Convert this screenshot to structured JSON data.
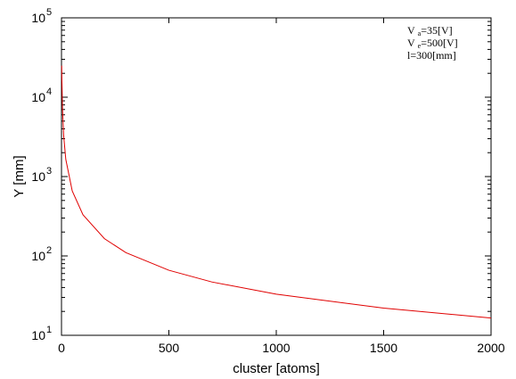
{
  "chart_data": {
    "type": "line",
    "title": "",
    "xlabel": "cluster [atoms]",
    "ylabel": "Y [mm]",
    "xlim": [
      0,
      2000
    ],
    "ylim": [
      10,
      100000
    ],
    "yscale": "log",
    "grid": false,
    "x_ticks": [
      "0",
      "500",
      "1000",
      "1500",
      "2000"
    ],
    "y_ticks": [
      {
        "base": "10",
        "exp": "1"
      },
      {
        "base": "10",
        "exp": "2"
      },
      {
        "base": "10",
        "exp": "3"
      },
      {
        "base": "10",
        "exp": "4"
      },
      {
        "base": "10",
        "exp": "5"
      }
    ],
    "annotations": [
      {
        "main": "V",
        "sub": "a",
        "rest": "=35[V]"
      },
      {
        "main": "V",
        "sub": "e",
        "rest": "=500[V]"
      },
      {
        "main": "l=300[mm]",
        "sub": "",
        "rest": ""
      }
    ],
    "series": [
      {
        "color": "#e00000",
        "x": [
          1,
          2,
          5,
          10,
          20,
          50,
          100,
          200,
          300,
          500,
          700,
          1000,
          1500,
          2000
        ],
        "y": [
          25000,
          16000,
          6800,
          3300,
          1650,
          660,
          330,
          165,
          110,
          66,
          47,
          33,
          22,
          16.5
        ]
      }
    ]
  }
}
